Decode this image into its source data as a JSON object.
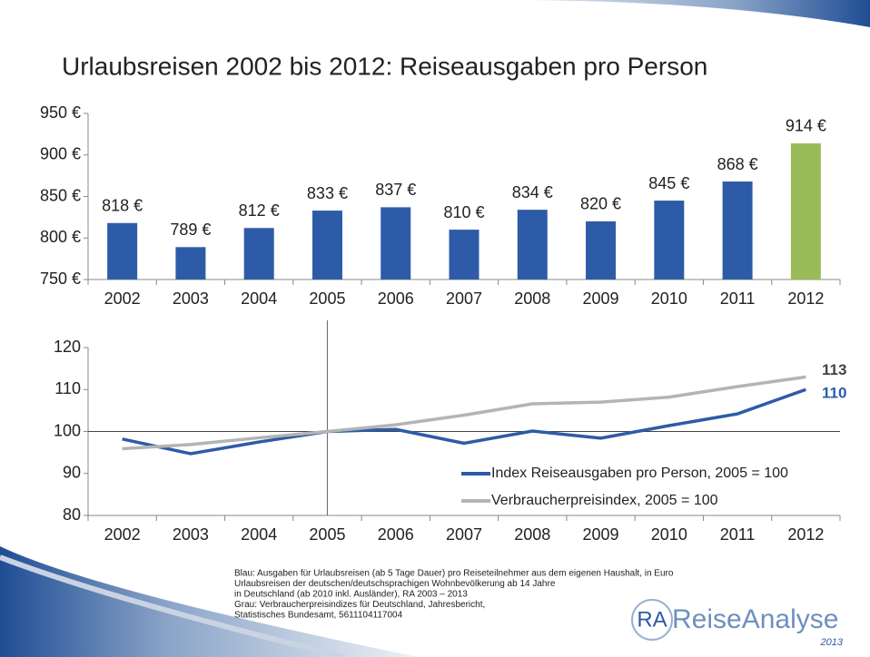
{
  "chart_data": [
    {
      "type": "bar",
      "title": "Urlaubsreisen 2002 bis 2012: Reiseausgaben pro Person",
      "categories": [
        "2002",
        "2003",
        "2004",
        "2005",
        "2006",
        "2007",
        "2008",
        "2009",
        "2010",
        "2011",
        "2012"
      ],
      "values": [
        818,
        789,
        812,
        833,
        837,
        810,
        834,
        820,
        845,
        868,
        914
      ],
      "value_labels": [
        "818 €",
        "789 €",
        "812 €",
        "833 €",
        "837 €",
        "810 €",
        "834 €",
        "820 €",
        "845 €",
        "868 €",
        "914 €"
      ],
      "colors": [
        "#2e5ba8",
        "#2e5ba8",
        "#2e5ba8",
        "#2e5ba8",
        "#2e5ba8",
        "#2e5ba8",
        "#2e5ba8",
        "#2e5ba8",
        "#2e5ba8",
        "#2e5ba8",
        "#9bbb59"
      ],
      "ylim": [
        750,
        950
      ],
      "yticks": [
        {
          "value": 750,
          "label": "750 €"
        },
        {
          "value": 800,
          "label": "800 €"
        },
        {
          "value": 850,
          "label": "850 €"
        },
        {
          "value": 900,
          "label": "900 €"
        },
        {
          "value": 950,
          "label": "950 €"
        }
      ]
    },
    {
      "type": "line",
      "categories": [
        "2002",
        "2003",
        "2004",
        "2005",
        "2006",
        "2007",
        "2008",
        "2009",
        "2010",
        "2011",
        "2012"
      ],
      "series": [
        {
          "name": "Index Reiseausgaben pro Person, 2005 = 100",
          "color": "#2e5ba8",
          "values": [
            98.2,
            94.7,
            97.5,
            100,
            100.5,
            97.2,
            100.1,
            98.4,
            101.4,
            104.2,
            110
          ]
        },
        {
          "name": "Verbraucherpreisindex, 2005 = 100",
          "color": "#b4b4b4",
          "values": [
            95.9,
            96.9,
            98.5,
            100,
            101.6,
            103.9,
            106.6,
            107.0,
            108.2,
            110.7,
            113
          ]
        }
      ],
      "ylim": [
        80,
        120
      ],
      "yticks": [
        80,
        90,
        100,
        110,
        120
      ],
      "reference_y": 100,
      "reference_x": "2005",
      "legend": "lower right"
    }
  ],
  "notes": [
    "Blau: Ausgaben für Urlaubsreisen (ab 5 Tage Dauer) pro Reiseteilnehmer aus dem eigenen Haushalt, in Euro",
    "Urlaubsreisen der deutschen/deutschsprachigen Wohnbevölkerung ab 14 Jahre",
    "in Deutschland (ab 2010 inkl. Ausländer), RA 2003 – 2013",
    "Grau: Verbraucherpreisindizes für Deutschland, Jahresbericht,",
    "Statistisches Bundesamt, 5611104117004"
  ],
  "logo": {
    "mark": "RA",
    "name": "ReiseAnalyse",
    "year": "2013"
  }
}
